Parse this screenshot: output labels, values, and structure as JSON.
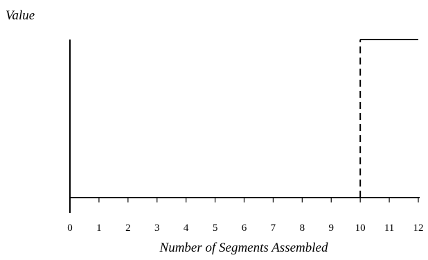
{
  "chart_data": {
    "type": "line",
    "title": "",
    "ylabel": "Value",
    "xlabel": "Number of Segments Assembled",
    "x_ticks": [
      0,
      1,
      2,
      3,
      4,
      5,
      6,
      7,
      8,
      9,
      10,
      11,
      12
    ],
    "xlim": [
      0,
      12
    ],
    "ylim": [
      0,
      1
    ],
    "y_tick_labels": false,
    "grid": false,
    "legend": "none",
    "series": [
      {
        "points": [
          [
            0,
            0
          ],
          [
            10,
            0
          ]
        ],
        "style": "solid"
      },
      {
        "points": [
          [
            10,
            0
          ],
          [
            10,
            1
          ]
        ],
        "style": "dashed"
      },
      {
        "points": [
          [
            10,
            1
          ],
          [
            12,
            1
          ]
        ],
        "style": "solid"
      }
    ],
    "colors": {
      "line": "#000000",
      "axis": "#000000"
    }
  }
}
